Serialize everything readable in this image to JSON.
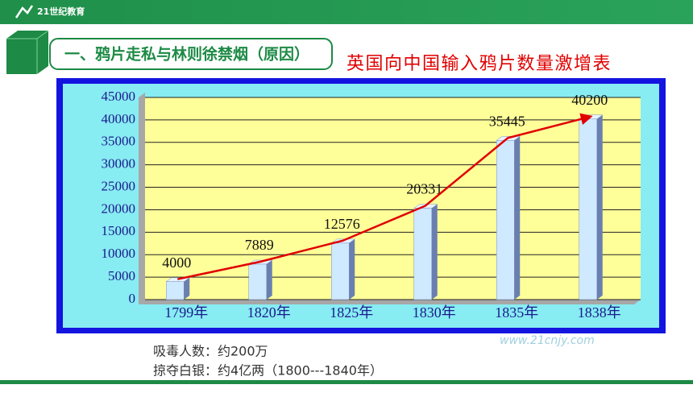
{
  "header": {
    "logo": "21世纪教育",
    "section_title": "一、鸦片走私与林则徐禁烟（原因）"
  },
  "chart_data": {
    "type": "bar",
    "title": "英国向中国输入鸦片数量激增表",
    "categories": [
      "1799年",
      "1820年",
      "1825年",
      "1830年",
      "1835年",
      "1838年"
    ],
    "values": [
      4000,
      7889,
      12576,
      20331,
      35445,
      40200
    ],
    "color": "#cfe9ff",
    "line_color": "#e00000",
    "ylim": [
      0,
      45000
    ],
    "yticks": [
      0,
      5000,
      10000,
      15000,
      20000,
      25000,
      30000,
      35000,
      40000,
      45000
    ],
    "grid": true
  },
  "notes": [
    "吸毒人数：约200万",
    "掠夺白银：约4亿两（1800---1840年）"
  ],
  "watermark": "www.21cnjy.com"
}
